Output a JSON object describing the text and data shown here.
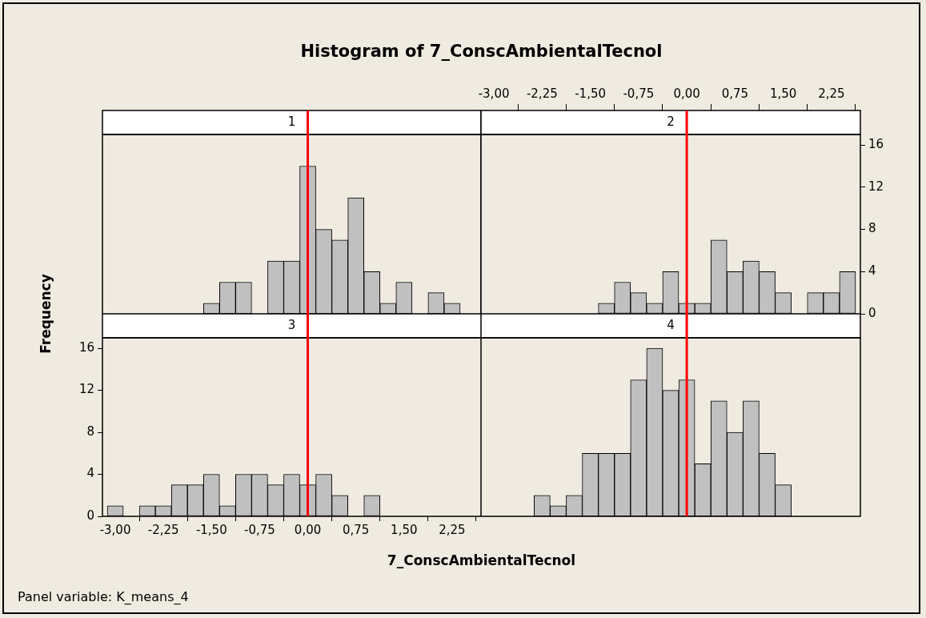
{
  "chart_data": [
    {
      "type": "histogram",
      "title": "Histogram of 7_ConscAmbientalTecnol",
      "subtitle": "1",
      "color": "#c0c0c0",
      "tick_labels": false,
      "xlim": [
        -3.2,
        2.7
      ],
      "ylim": [
        0,
        17
      ],
      "bins": [
        -3.125,
        -2.875,
        -2.625,
        -2.375,
        -2.125,
        -1.875,
        -1.625,
        -1.375,
        -1.125,
        -0.875,
        -0.625,
        -0.375,
        -0.125,
        0.125,
        0.375,
        0.625,
        0.875,
        1.125,
        1.375,
        1.625,
        1.875,
        2.125,
        2.375,
        2.625
      ],
      "values": [
        0,
        0,
        0,
        0,
        0,
        0,
        1,
        3,
        3,
        0,
        5,
        5,
        14,
        8,
        7,
        11,
        4,
        1,
        3,
        0,
        2,
        1,
        0
      ],
      "ref_lines": [
        {
          "axis": "x",
          "value": 0,
          "color": "#ff0000"
        }
      ]
    },
    {
      "type": "histogram",
      "subtitle": "2",
      "color": "#c0c0c0",
      "xlim": [
        -3.2,
        2.7
      ],
      "ylim": [
        0,
        17
      ],
      "xticks": [
        {
          "value": -3,
          "label": "-3,00"
        },
        {
          "value": -2.25,
          "label": "-2,25"
        },
        {
          "value": -1.5,
          "label": "-1,50"
        },
        {
          "value": -0.75,
          "label": "-0,75"
        },
        {
          "value": 0,
          "label": "0,00"
        },
        {
          "value": 0.75,
          "label": "0,75"
        },
        {
          "value": 1.5,
          "label": "1,50"
        },
        {
          "value": 2.25,
          "label": "2,25"
        }
      ],
      "yticks": [
        0,
        4,
        8,
        12,
        16
      ],
      "bins": [
        -3.125,
        -2.875,
        -2.625,
        -2.375,
        -2.125,
        -1.875,
        -1.625,
        -1.375,
        -1.125,
        -0.875,
        -0.625,
        -0.375,
        -0.125,
        0.125,
        0.375,
        0.625,
        0.875,
        1.125,
        1.375,
        1.625,
        1.875,
        2.125,
        2.375,
        2.625
      ],
      "values": [
        0,
        0,
        0,
        0,
        0,
        0,
        0,
        1,
        3,
        2,
        1,
        4,
        1,
        1,
        7,
        4,
        5,
        4,
        2,
        0,
        2,
        2,
        4
      ],
      "ref_lines": [
        {
          "axis": "x",
          "value": 0,
          "color": "#ff0000"
        }
      ]
    },
    {
      "type": "histogram",
      "subtitle": "3",
      "xlabel": "7_ConscAmbientalTecnol",
      "ylabel": "Frequency",
      "annotations": [
        "Panel variable: K_means_4"
      ],
      "color": "#c0c0c0",
      "xlim": [
        -3.2,
        2.7
      ],
      "ylim": [
        0,
        17
      ],
      "xticks": [
        {
          "value": -3,
          "label": "-3,00"
        },
        {
          "value": -2.25,
          "label": "-2,25"
        },
        {
          "value": -1.5,
          "label": "-1,50"
        },
        {
          "value": -0.75,
          "label": "-0,75"
        },
        {
          "value": 0,
          "label": "0,00"
        },
        {
          "value": 0.75,
          "label": "0,75"
        },
        {
          "value": 1.5,
          "label": "1,50"
        },
        {
          "value": 2.25,
          "label": "2,25"
        }
      ],
      "yticks": [
        0,
        4,
        8,
        12,
        16
      ],
      "bins": [
        -3.125,
        -2.875,
        -2.625,
        -2.375,
        -2.125,
        -1.875,
        -1.625,
        -1.375,
        -1.125,
        -0.875,
        -0.625,
        -0.375,
        -0.125,
        0.125,
        0.375,
        0.625,
        0.875,
        1.125,
        1.375,
        1.625,
        1.875,
        2.125,
        2.375,
        2.625
      ],
      "values": [
        1,
        0,
        1,
        1,
        3,
        3,
        4,
        1,
        4,
        4,
        3,
        4,
        3,
        4,
        2,
        0,
        2,
        0,
        0,
        0,
        0,
        0,
        0
      ],
      "ref_lines": [
        {
          "axis": "x",
          "value": 0,
          "color": "#ff0000"
        }
      ]
    },
    {
      "type": "histogram",
      "subtitle": "4",
      "color": "#c0c0c0",
      "tick_labels": false,
      "xlim": [
        -3.2,
        2.7
      ],
      "ylim": [
        0,
        17
      ],
      "bins": [
        -3.125,
        -2.875,
        -2.625,
        -2.375,
        -2.125,
        -1.875,
        -1.625,
        -1.375,
        -1.125,
        -0.875,
        -0.625,
        -0.375,
        -0.125,
        0.125,
        0.375,
        0.625,
        0.875,
        1.125,
        1.375,
        1.625,
        1.875,
        2.125,
        2.375,
        2.625
      ],
      "values": [
        0,
        0,
        0,
        2,
        1,
        2,
        6,
        6,
        6,
        13,
        16,
        12,
        13,
        5,
        11,
        8,
        11,
        6,
        3,
        0,
        0,
        0,
        0
      ],
      "ref_lines": [
        {
          "axis": "x",
          "value": 0,
          "color": "#ff0000"
        }
      ]
    }
  ]
}
